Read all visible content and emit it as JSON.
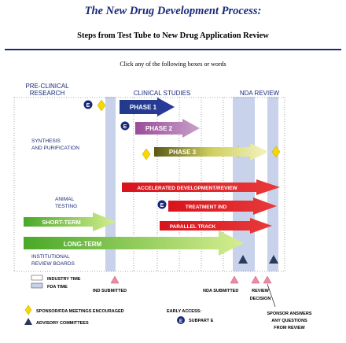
{
  "header": {
    "title": "The New Drug Development Process:",
    "subtitle": "Steps from Test Tube to New Drug Application Review",
    "instruction": "Click any of the following boxes or words"
  },
  "phase_headers": {
    "preclinical_line1": "PRE-CLINICAL",
    "preclinical_line2": "RESEARCH",
    "clinical": "CLINICAL STUDIES",
    "nda": "NDA REVIEW"
  },
  "left_labels": {
    "synthesis_line1": "SYNTHESIS",
    "synthesis_line2": "AND PURIFICATION",
    "animal_line1": "ANIMAL",
    "animal_line2": "TESTING",
    "irb_line1": "INSTITUTIONAL",
    "irb_line2": "REVIEW BOARDS"
  },
  "arrows": {
    "phase1": "PHASE 1",
    "phase2": "PHASE 2",
    "phase3": "PHASE 3",
    "accelerated": "ACCELERATED DEVELOPMENT/REVIEW",
    "treatment_ind": "TREATMENT IND",
    "parallel_track": "PARALLEL TRACK",
    "short_term": "SHORT-TERM",
    "long_term": "LONG-TERM"
  },
  "badges": {
    "e": "E"
  },
  "legend": {
    "industry_time": "INDUSTRY TIME",
    "fda_time": "FDA TIME",
    "meetings": "SPONSOR/FDA MEETINGS ENCOURAGED",
    "advisory": "ADVISORY COMMITTEES",
    "early_access": "EARLY ACCESS:",
    "subpart_e": "SUBPART E"
  },
  "milestones": {
    "ind": "IND SUBMITTED",
    "nda": "NDA SUBMITTED",
    "review_line1": "REVIEW",
    "review_line2": "DECISION",
    "sponsor_line1": "SPONSOR ANSWERS",
    "sponsor_line2": "ANY QUESTIONS",
    "sponsor_line3": "FROM REVIEW"
  },
  "colors": {
    "navy": "#1a2a78",
    "fda_band": "#c8d2ea",
    "phase1": "#233a8a",
    "phase2": "#8a3f8a",
    "phase3": "#8a8a22",
    "red": "#d8141c",
    "green": "#6db82a",
    "diamond": "#f6d800",
    "triangle": "#ee8aa6"
  }
}
